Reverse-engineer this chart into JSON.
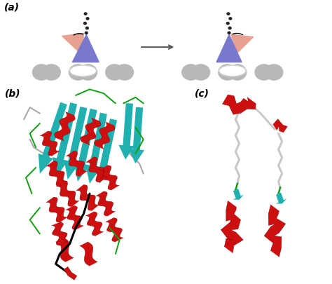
{
  "panel_a_label": "(a)",
  "panel_b_label": "(b)",
  "panel_c_label": "(c)",
  "bg_color": "#ffffff",
  "label_fontsize": 10,
  "tubulin_color": "#b8b8b8",
  "blue_motor_color": "#7878cc",
  "pink_motor_color": "#e8a090",
  "arrow_color": "#555555",
  "teal_color": "#20b0b0",
  "red_color": "#cc1010",
  "green_color": "#10a010",
  "black_color": "#000000",
  "grey_coil_color": "#c0c0c0",
  "fig_width": 4.74,
  "fig_height": 4.06
}
